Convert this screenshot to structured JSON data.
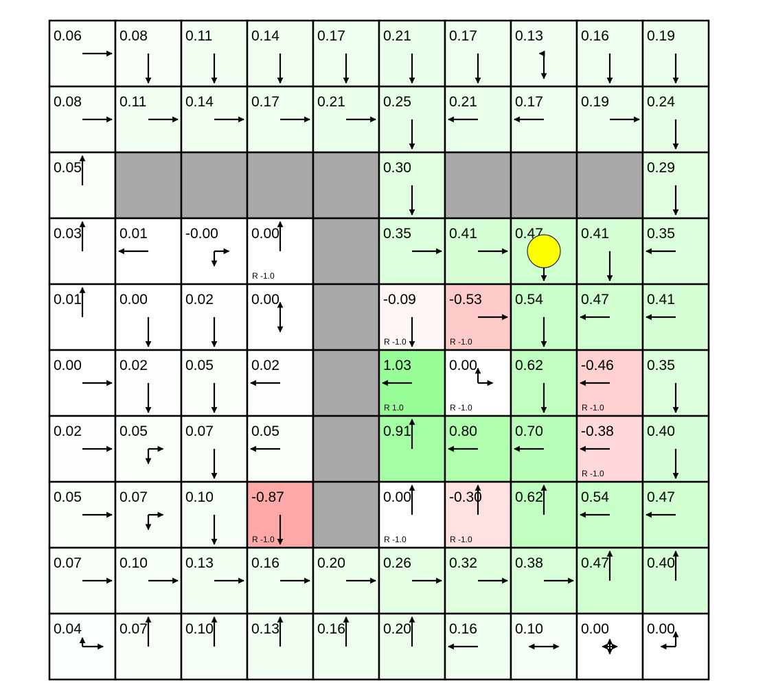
{
  "colors": {
    "wall": "#a9a9a9",
    "agent": "#ffff00",
    "border": "#000000"
  },
  "agent": {
    "row": 3,
    "col": 7
  },
  "grid": [
    [
      {
        "v": "0.06",
        "p": {
          "r": 1
        }
      },
      {
        "v": "0.08",
        "p": {
          "d": 1
        }
      },
      {
        "v": "0.11",
        "p": {
          "d": 1
        }
      },
      {
        "v": "0.14",
        "p": {
          "d": 1
        }
      },
      {
        "v": "0.17",
        "p": {
          "d": 1
        }
      },
      {
        "v": "0.21",
        "p": {
          "d": 1
        }
      },
      {
        "v": "0.17",
        "p": {
          "d": 1
        }
      },
      {
        "v": "0.13",
        "p": {
          "d": 0.85,
          "l": 0.15
        }
      },
      {
        "v": "0.16",
        "p": {
          "d": 1
        }
      },
      {
        "v": "0.19",
        "p": {
          "d": 1
        }
      }
    ],
    [
      {
        "v": "0.08",
        "p": {
          "r": 1
        }
      },
      {
        "v": "0.11",
        "p": {
          "r": 1
        }
      },
      {
        "v": "0.14",
        "p": {
          "r": 1
        }
      },
      {
        "v": "0.17",
        "p": {
          "r": 1
        }
      },
      {
        "v": "0.21",
        "p": {
          "r": 1
        }
      },
      {
        "v": "0.25",
        "p": {
          "d": 1
        }
      },
      {
        "v": "0.21",
        "p": {
          "l": 1
        }
      },
      {
        "v": "0.17",
        "p": {
          "l": 1
        }
      },
      {
        "v": "0.19",
        "p": {
          "r": 1
        }
      },
      {
        "v": "0.24",
        "p": {
          "d": 1
        }
      }
    ],
    [
      {
        "v": "0.05",
        "p": {
          "u": 1
        }
      },
      {
        "wall": true
      },
      {
        "wall": true
      },
      {
        "wall": true
      },
      {
        "wall": true
      },
      {
        "v": "0.30",
        "p": {
          "d": 1
        }
      },
      {
        "wall": true
      },
      {
        "wall": true
      },
      {
        "wall": true
      },
      {
        "v": "0.29",
        "p": {
          "d": 1
        }
      }
    ],
    [
      {
        "v": "0.03",
        "p": {
          "u": 1
        }
      },
      {
        "v": "0.01",
        "p": {
          "l": 1
        }
      },
      {
        "v": "-0.00",
        "p": {
          "d": 0.5,
          "r": 0.5
        }
      },
      {
        "v": "0.00",
        "p": {
          "u": 1
        },
        "r": "R -1.0"
      },
      {
        "wall": true
      },
      {
        "v": "0.35",
        "p": {
          "r": 1
        }
      },
      {
        "v": "0.41",
        "p": {
          "r": 1
        }
      },
      {
        "v": "0.47",
        "p": {
          "d": 1
        }
      },
      {
        "v": "0.41",
        "p": {
          "d": 1
        }
      },
      {
        "v": "0.35",
        "p": {
          "l": 1
        }
      }
    ],
    [
      {
        "v": "0.01",
        "p": {
          "u": 1
        }
      },
      {
        "v": "0.00",
        "p": {
          "d": 1
        }
      },
      {
        "v": "0.02",
        "p": {
          "d": 1
        }
      },
      {
        "v": "0.00",
        "p": {
          "u": 0.5,
          "d": 0.5
        }
      },
      {
        "wall": true
      },
      {
        "v": "-0.09",
        "p": {
          "d": 1
        },
        "r": "R -1.0"
      },
      {
        "v": "-0.53",
        "p": {
          "r": 1
        },
        "r": "R -1.0"
      },
      {
        "v": "0.54",
        "p": {
          "d": 1
        }
      },
      {
        "v": "0.47",
        "p": {
          "l": 1
        }
      },
      {
        "v": "0.41",
        "p": {
          "l": 1
        }
      }
    ],
    [
      {
        "v": "0.00",
        "p": {
          "r": 1
        }
      },
      {
        "v": "0.02",
        "p": {
          "d": 1
        }
      },
      {
        "v": "0.05",
        "p": {
          "d": 1
        }
      },
      {
        "v": "0.02",
        "p": {
          "l": 1
        }
      },
      {
        "wall": true
      },
      {
        "v": "1.03",
        "p": {
          "l": 1
        },
        "r": "R 1.0"
      },
      {
        "v": "0.00",
        "p": {
          "u": 0.5,
          "r": 0.5
        },
        "r": "R -1.0"
      },
      {
        "v": "0.62",
        "p": {
          "d": 1
        }
      },
      {
        "v": "-0.46",
        "p": {
          "l": 1
        },
        "r": "R -1.0"
      },
      {
        "v": "0.35",
        "p": {
          "d": 1
        }
      }
    ],
    [
      {
        "v": "0.02",
        "p": {
          "r": 1
        }
      },
      {
        "v": "0.05",
        "p": {
          "d": 0.5,
          "r": 0.5
        }
      },
      {
        "v": "0.07",
        "p": {
          "d": 1
        }
      },
      {
        "v": "0.05",
        "p": {
          "l": 1
        }
      },
      {
        "wall": true
      },
      {
        "v": "0.91",
        "p": {
          "u": 1
        }
      },
      {
        "v": "0.80",
        "p": {
          "l": 1
        }
      },
      {
        "v": "0.70",
        "p": {
          "l": 1
        }
      },
      {
        "v": "-0.38",
        "p": {
          "l": 1
        },
        "r": "R -1.0"
      },
      {
        "v": "0.40",
        "p": {
          "d": 1
        }
      }
    ],
    [
      {
        "v": "0.05",
        "p": {
          "r": 1
        }
      },
      {
        "v": "0.07",
        "p": {
          "d": 0.5,
          "r": 0.5
        }
      },
      {
        "v": "0.10",
        "p": {
          "d": 1
        }
      },
      {
        "v": "-0.87",
        "p": {
          "d": 1
        },
        "r": "R -1.0"
      },
      {
        "wall": true
      },
      {
        "v": "0.00",
        "p": {
          "u": 1
        },
        "r": "R -1.0"
      },
      {
        "v": "-0.30",
        "p": {
          "u": 1
        },
        "r": "R -1.0"
      },
      {
        "v": "0.62",
        "p": {
          "u": 1
        }
      },
      {
        "v": "0.54",
        "p": {
          "l": 1
        }
      },
      {
        "v": "0.47",
        "p": {
          "l": 1
        }
      }
    ],
    [
      {
        "v": "0.07",
        "p": {
          "r": 1
        }
      },
      {
        "v": "0.10",
        "p": {
          "r": 1
        }
      },
      {
        "v": "0.13",
        "p": {
          "r": 1
        }
      },
      {
        "v": "0.16",
        "p": {
          "r": 1
        }
      },
      {
        "v": "0.20",
        "p": {
          "r": 1
        }
      },
      {
        "v": "0.26",
        "p": {
          "r": 1
        }
      },
      {
        "v": "0.32",
        "p": {
          "r": 1
        }
      },
      {
        "v": "0.38",
        "p": {
          "r": 1
        }
      },
      {
        "v": "0.47",
        "p": {
          "u": 1
        }
      },
      {
        "v": "0.40",
        "p": {
          "u": 1
        }
      }
    ],
    [
      {
        "v": "0.04",
        "p": {
          "u": 0.3,
          "r": 0.7
        }
      },
      {
        "v": "0.07",
        "p": {
          "u": 1
        }
      },
      {
        "v": "0.10",
        "p": {
          "u": 1
        }
      },
      {
        "v": "0.13",
        "p": {
          "u": 1
        }
      },
      {
        "v": "0.16",
        "p": {
          "u": 1
        }
      },
      {
        "v": "0.20",
        "p": {
          "u": 1
        }
      },
      {
        "v": "0.16",
        "p": {
          "l": 1
        }
      },
      {
        "v": "0.10",
        "p": {
          "l": 0.5,
          "r": 0.5
        }
      },
      {
        "v": "0.00",
        "p": {
          "u": 0.25,
          "d": 0.25,
          "l": 0.25,
          "r": 0.25
        }
      },
      {
        "v": "0.00",
        "p": {
          "u": 0.5,
          "l": 0.5
        }
      }
    ]
  ]
}
